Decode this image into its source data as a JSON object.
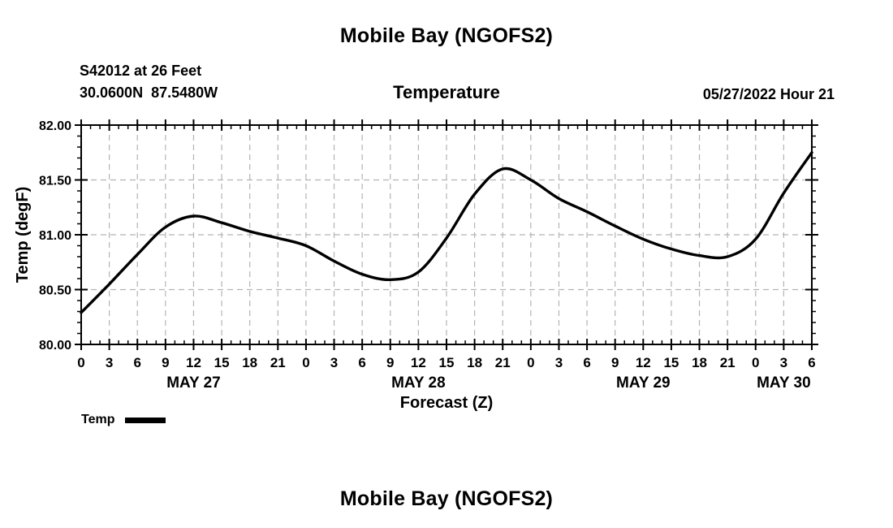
{
  "header": {
    "title": "Mobile Bay (NGOFS2)",
    "station_line1": "S42012 at 26 Feet",
    "station_line2": "30.0600N  87.5480W",
    "subtitle": "Temperature",
    "datetime": "05/27/2022 Hour 21"
  },
  "chart_data": {
    "type": "line",
    "title": "Temperature",
    "xlabel": "Forecast (Z)",
    "ylabel": "Temp (degF)",
    "ylim": [
      80.0,
      82.0
    ],
    "ytick_interval": 0.5,
    "ytick_minor_interval": 0.1,
    "ytick_labels": [
      "80.00",
      "80.50",
      "81.00",
      "81.50",
      "82.00"
    ],
    "xlim": [
      0,
      78
    ],
    "xtick_interval": 3,
    "xtick_minor_interval": 1,
    "xtick_labels": [
      "0",
      "3",
      "6",
      "9",
      "12",
      "15",
      "18",
      "21",
      "0",
      "3",
      "6",
      "9",
      "12",
      "15",
      "18",
      "21",
      "0",
      "3",
      "6",
      "9",
      "12",
      "15",
      "18",
      "21",
      "0",
      "3",
      "6"
    ],
    "day_labels": [
      {
        "label": "MAY 27",
        "hour": 12
      },
      {
        "label": "MAY 28",
        "hour": 36
      },
      {
        "label": "MAY 29",
        "hour": 60
      },
      {
        "label": "MAY 30",
        "hour": 75
      }
    ],
    "grid": {
      "show": true,
      "color": "#b4b4b4",
      "style": "dashed"
    },
    "legend": {
      "position": "below-left",
      "entries": [
        {
          "label": "Temp",
          "color": "#000000"
        }
      ]
    },
    "series": [
      {
        "name": "Temp",
        "color": "#000000",
        "x_hours": [
          0,
          3,
          6,
          9,
          12,
          15,
          18,
          21,
          24,
          27,
          30,
          33,
          36,
          39,
          42,
          45,
          48,
          51,
          54,
          57,
          60,
          63,
          66,
          69,
          72,
          75,
          78
        ],
        "values": [
          80.29,
          80.55,
          80.82,
          81.07,
          81.17,
          81.11,
          81.03,
          80.97,
          80.9,
          80.76,
          80.64,
          80.59,
          80.66,
          80.97,
          81.37,
          81.6,
          81.5,
          81.33,
          81.21,
          81.08,
          80.96,
          80.87,
          80.81,
          80.8,
          80.96,
          81.38,
          81.75
        ]
      }
    ]
  },
  "footer": {
    "title": "Mobile Bay (NGOFS2)"
  }
}
